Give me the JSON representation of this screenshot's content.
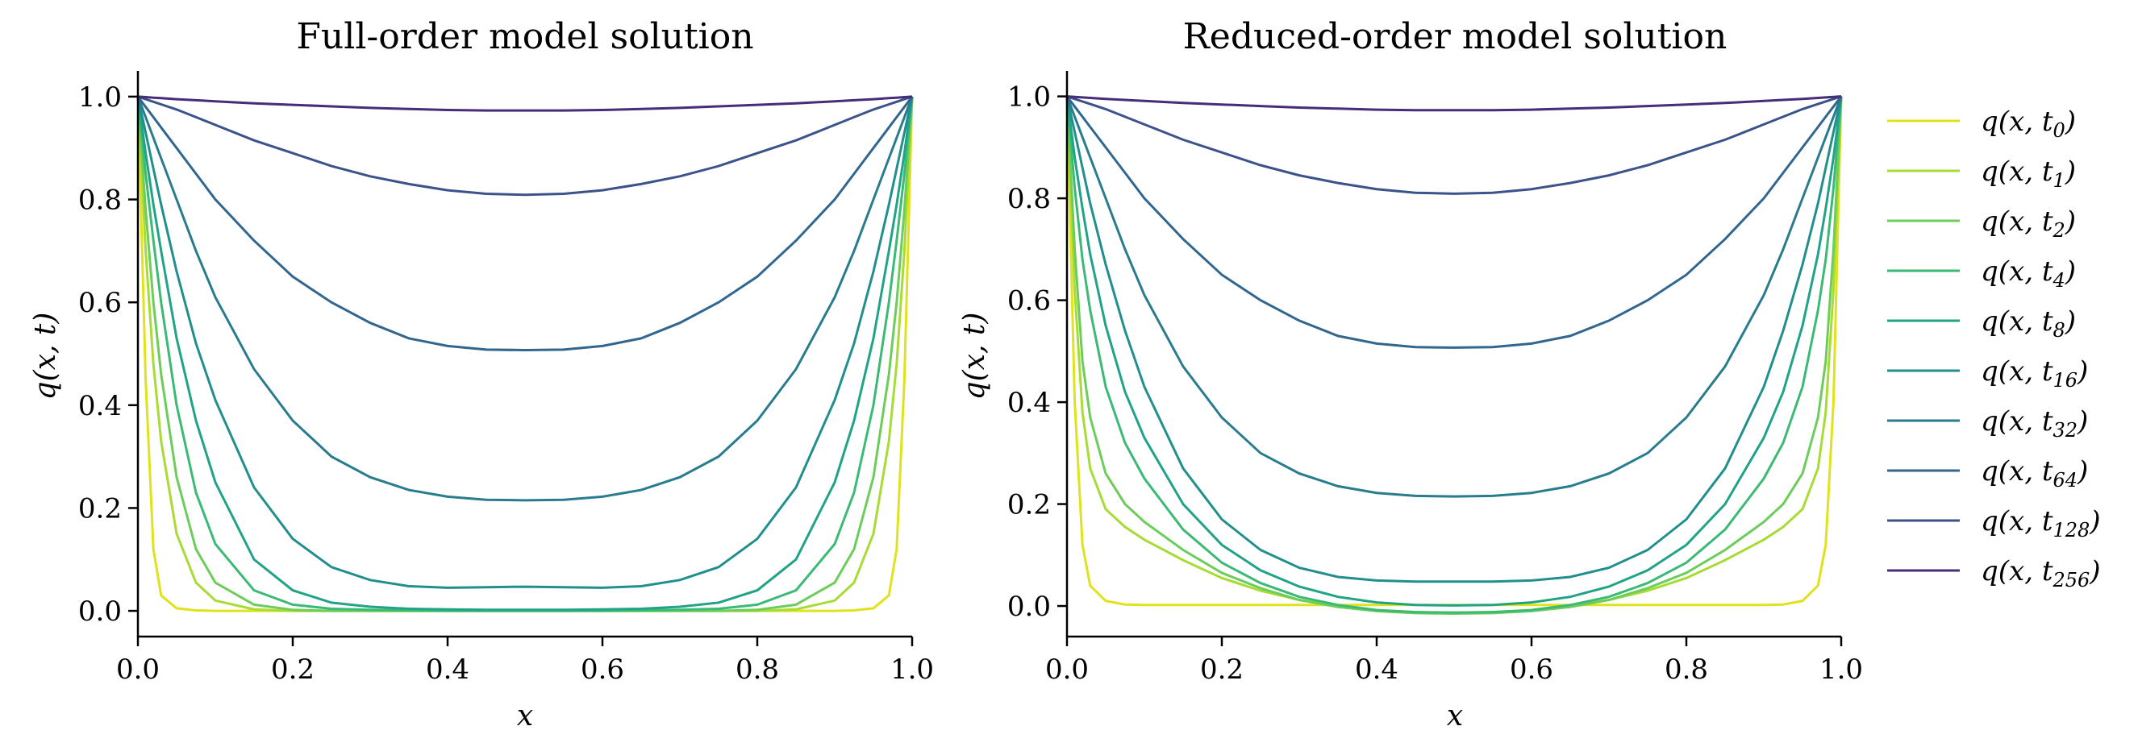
{
  "chart_data": [
    {
      "type": "line",
      "title": "Full-order model solution",
      "xlabel": "x",
      "ylabel": "q(x, t)",
      "xlim": [
        0.0,
        1.0
      ],
      "ylim": [
        -0.05,
        1.05
      ],
      "xticks": [
        "0.0",
        "0.2",
        "0.4",
        "0.6",
        "0.8",
        "1.0"
      ],
      "yticks": [
        "0.0",
        "0.2",
        "0.4",
        "0.6",
        "0.8",
        "1.0"
      ],
      "grid": false,
      "x": [
        0,
        0.01,
        0.02,
        0.03,
        0.05,
        0.075,
        0.1,
        0.15,
        0.2,
        0.25,
        0.3,
        0.35,
        0.4,
        0.45,
        0.5,
        0.55,
        0.6,
        0.65,
        0.7,
        0.75,
        0.8,
        0.85,
        0.9,
        0.925,
        0.95,
        0.97,
        0.98,
        0.99,
        1.0
      ],
      "series": [
        {
          "name": "t0",
          "values": [
            1.0,
            0.45,
            0.12,
            0.03,
            0.005,
            0.001,
            0.0,
            0.0,
            0.0,
            0.0,
            0.0,
            0.0,
            0.0,
            0.0,
            0.0,
            0.0,
            0.0,
            0.0,
            0.0,
            0.0,
            0.0,
            0.0,
            0.0,
            0.001,
            0.005,
            0.03,
            0.12,
            0.45,
            1.0
          ]
        },
        {
          "name": "t1",
          "values": [
            1.0,
            0.7,
            0.48,
            0.33,
            0.15,
            0.055,
            0.02,
            0.003,
            0.0,
            0.0,
            0.0,
            0.0,
            0.0,
            0.0,
            0.0,
            0.0,
            0.0,
            0.0,
            0.0,
            0.0,
            0.0,
            0.003,
            0.02,
            0.055,
            0.15,
            0.33,
            0.48,
            0.7,
            1.0
          ]
        },
        {
          "name": "t2",
          "values": [
            1.0,
            0.78,
            0.6,
            0.46,
            0.26,
            0.12,
            0.055,
            0.012,
            0.002,
            0.0,
            0.0,
            0.0,
            0.0,
            0.0,
            0.0,
            0.0,
            0.0,
            0.0,
            0.0,
            0.0,
            0.002,
            0.012,
            0.055,
            0.12,
            0.26,
            0.46,
            0.6,
            0.78,
            1.0
          ]
        },
        {
          "name": "t4",
          "values": [
            1.0,
            0.85,
            0.72,
            0.6,
            0.4,
            0.23,
            0.13,
            0.04,
            0.012,
            0.004,
            0.002,
            0.001,
            0.0,
            0.0,
            0.0,
            0.0,
            0.0,
            0.001,
            0.002,
            0.004,
            0.012,
            0.04,
            0.13,
            0.23,
            0.4,
            0.6,
            0.72,
            0.85,
            1.0
          ]
        },
        {
          "name": "t8",
          "values": [
            1.0,
            0.89,
            0.79,
            0.7,
            0.53,
            0.37,
            0.25,
            0.1,
            0.04,
            0.016,
            0.008,
            0.004,
            0.003,
            0.002,
            0.002,
            0.002,
            0.003,
            0.004,
            0.008,
            0.016,
            0.04,
            0.1,
            0.25,
            0.37,
            0.53,
            0.7,
            0.79,
            0.89,
            1.0
          ]
        },
        {
          "name": "t16",
          "values": [
            1.0,
            0.93,
            0.86,
            0.79,
            0.66,
            0.52,
            0.41,
            0.24,
            0.14,
            0.085,
            0.06,
            0.048,
            0.045,
            0.046,
            0.047,
            0.046,
            0.045,
            0.048,
            0.06,
            0.085,
            0.14,
            0.24,
            0.41,
            0.52,
            0.66,
            0.79,
            0.86,
            0.93,
            1.0
          ]
        },
        {
          "name": "t32",
          "values": [
            1.0,
            0.96,
            0.92,
            0.88,
            0.8,
            0.7,
            0.61,
            0.47,
            0.37,
            0.3,
            0.26,
            0.235,
            0.222,
            0.216,
            0.215,
            0.216,
            0.222,
            0.235,
            0.26,
            0.3,
            0.37,
            0.47,
            0.61,
            0.7,
            0.8,
            0.88,
            0.92,
            0.96,
            1.0
          ]
        },
        {
          "name": "t64",
          "values": [
            1.0,
            0.98,
            0.96,
            0.94,
            0.9,
            0.85,
            0.8,
            0.72,
            0.65,
            0.6,
            0.56,
            0.53,
            0.515,
            0.508,
            0.507,
            0.508,
            0.515,
            0.53,
            0.56,
            0.6,
            0.65,
            0.72,
            0.8,
            0.85,
            0.9,
            0.94,
            0.96,
            0.98,
            1.0
          ]
        },
        {
          "name": "t128",
          "values": [
            1.0,
            0.995,
            0.99,
            0.985,
            0.975,
            0.96,
            0.945,
            0.915,
            0.89,
            0.865,
            0.845,
            0.83,
            0.818,
            0.811,
            0.809,
            0.811,
            0.818,
            0.83,
            0.845,
            0.865,
            0.89,
            0.915,
            0.945,
            0.96,
            0.975,
            0.985,
            0.99,
            0.995,
            1.0
          ]
        },
        {
          "name": "t256",
          "values": [
            1.0,
            0.999,
            0.998,
            0.997,
            0.995,
            0.993,
            0.991,
            0.987,
            0.984,
            0.981,
            0.978,
            0.976,
            0.974,
            0.973,
            0.973,
            0.973,
            0.974,
            0.976,
            0.978,
            0.981,
            0.984,
            0.987,
            0.991,
            0.993,
            0.995,
            0.997,
            0.998,
            0.999,
            1.0
          ]
        }
      ]
    },
    {
      "type": "line",
      "title": "Reduced-order model solution",
      "xlabel": "x",
      "ylabel": "q(x, t)",
      "xlim": [
        0.0,
        1.0
      ],
      "ylim": [
        -0.06,
        1.05
      ],
      "xticks": [
        "0.0",
        "0.2",
        "0.4",
        "0.6",
        "0.8",
        "1.0"
      ],
      "yticks": [
        "0.0",
        "0.2",
        "0.4",
        "0.6",
        "0.8",
        "1.0"
      ],
      "grid": false,
      "x": [
        0,
        0.01,
        0.02,
        0.03,
        0.05,
        0.075,
        0.1,
        0.15,
        0.2,
        0.25,
        0.3,
        0.35,
        0.4,
        0.45,
        0.5,
        0.55,
        0.6,
        0.65,
        0.7,
        0.75,
        0.8,
        0.85,
        0.9,
        0.925,
        0.95,
        0.97,
        0.98,
        0.99,
        1.0
      ],
      "series": [
        {
          "name": "t0",
          "values": [
            1.0,
            0.4,
            0.12,
            0.04,
            0.01,
            0.003,
            0.002,
            0.002,
            0.002,
            0.002,
            0.002,
            0.002,
            0.002,
            0.002,
            0.002,
            0.002,
            0.002,
            0.002,
            0.002,
            0.002,
            0.002,
            0.002,
            0.002,
            0.003,
            0.01,
            0.04,
            0.12,
            0.4,
            1.0
          ]
        },
        {
          "name": "t1",
          "values": [
            1.0,
            0.62,
            0.38,
            0.27,
            0.19,
            0.155,
            0.13,
            0.09,
            0.055,
            0.03,
            0.012,
            0.0,
            -0.008,
            -0.012,
            -0.013,
            -0.012,
            -0.008,
            0.0,
            0.012,
            0.03,
            0.055,
            0.09,
            0.13,
            0.155,
            0.19,
            0.27,
            0.38,
            0.62,
            1.0
          ]
        },
        {
          "name": "t2",
          "values": [
            1.0,
            0.7,
            0.48,
            0.37,
            0.26,
            0.2,
            0.165,
            0.11,
            0.065,
            0.035,
            0.012,
            -0.002,
            -0.01,
            -0.014,
            -0.015,
            -0.014,
            -0.01,
            -0.002,
            0.012,
            0.035,
            0.065,
            0.11,
            0.165,
            0.2,
            0.26,
            0.37,
            0.48,
            0.7,
            1.0
          ]
        },
        {
          "name": "t4",
          "values": [
            1.0,
            0.82,
            0.68,
            0.58,
            0.43,
            0.32,
            0.25,
            0.15,
            0.085,
            0.045,
            0.018,
            0.002,
            -0.008,
            -0.012,
            -0.013,
            -0.012,
            -0.008,
            0.002,
            0.018,
            0.045,
            0.085,
            0.15,
            0.25,
            0.32,
            0.43,
            0.58,
            0.68,
            0.82,
            1.0
          ]
        },
        {
          "name": "t8",
          "values": [
            1.0,
            0.88,
            0.78,
            0.69,
            0.55,
            0.42,
            0.33,
            0.2,
            0.12,
            0.07,
            0.038,
            0.018,
            0.007,
            0.002,
            0.001,
            0.002,
            0.007,
            0.018,
            0.038,
            0.07,
            0.12,
            0.2,
            0.33,
            0.42,
            0.55,
            0.69,
            0.78,
            0.88,
            1.0
          ]
        },
        {
          "name": "t16",
          "values": [
            1.0,
            0.93,
            0.86,
            0.79,
            0.67,
            0.54,
            0.43,
            0.27,
            0.17,
            0.11,
            0.075,
            0.057,
            0.05,
            0.048,
            0.048,
            0.048,
            0.05,
            0.057,
            0.075,
            0.11,
            0.17,
            0.27,
            0.43,
            0.54,
            0.67,
            0.79,
            0.86,
            0.93,
            1.0
          ]
        },
        {
          "name": "t32",
          "values": [
            1.0,
            0.96,
            0.92,
            0.88,
            0.8,
            0.7,
            0.61,
            0.47,
            0.37,
            0.3,
            0.26,
            0.235,
            0.222,
            0.216,
            0.215,
            0.216,
            0.222,
            0.235,
            0.26,
            0.3,
            0.37,
            0.47,
            0.61,
            0.7,
            0.8,
            0.88,
            0.92,
            0.96,
            1.0
          ]
        },
        {
          "name": "t64",
          "values": [
            1.0,
            0.98,
            0.96,
            0.94,
            0.9,
            0.85,
            0.8,
            0.72,
            0.65,
            0.6,
            0.56,
            0.53,
            0.515,
            0.508,
            0.507,
            0.508,
            0.515,
            0.53,
            0.56,
            0.6,
            0.65,
            0.72,
            0.8,
            0.85,
            0.9,
            0.94,
            0.96,
            0.98,
            1.0
          ]
        },
        {
          "name": "t128",
          "values": [
            1.0,
            0.995,
            0.99,
            0.985,
            0.975,
            0.96,
            0.945,
            0.915,
            0.89,
            0.865,
            0.845,
            0.83,
            0.818,
            0.811,
            0.809,
            0.811,
            0.818,
            0.83,
            0.845,
            0.865,
            0.89,
            0.915,
            0.945,
            0.96,
            0.975,
            0.985,
            0.99,
            0.995,
            1.0
          ]
        },
        {
          "name": "t256",
          "values": [
            1.0,
            0.999,
            0.998,
            0.997,
            0.995,
            0.993,
            0.991,
            0.987,
            0.984,
            0.981,
            0.978,
            0.976,
            0.974,
            0.973,
            0.973,
            0.973,
            0.974,
            0.976,
            0.978,
            0.981,
            0.984,
            0.987,
            0.991,
            0.993,
            0.995,
            0.997,
            0.998,
            0.999,
            1.0
          ]
        }
      ]
    }
  ],
  "legend": {
    "placement": "right",
    "entries": [
      {
        "base": "q(x, t",
        "sub": "0",
        "close": ")",
        "color": "#e0e31a"
      },
      {
        "base": "q(x, t",
        "sub": "1",
        "close": ")",
        "color": "#a8db34"
      },
      {
        "base": "q(x, t",
        "sub": "2",
        "close": ")",
        "color": "#6ccd5a"
      },
      {
        "base": "q(x, t",
        "sub": "4",
        "close": ")",
        "color": "#3bba75"
      },
      {
        "base": "q(x, t",
        "sub": "8",
        "close": ")",
        "color": "#20a386"
      },
      {
        "base": "q(x, t",
        "sub": "16",
        "close": ")",
        "color": "#218f8d"
      },
      {
        "base": "q(x, t",
        "sub": "32",
        "close": ")",
        "color": "#287c8e"
      },
      {
        "base": "q(x, t",
        "sub": "64",
        "close": ")",
        "color": "#31668e"
      },
      {
        "base": "q(x, t",
        "sub": "128",
        "close": ")",
        "color": "#3b528b"
      },
      {
        "base": "q(x, t",
        "sub": "256",
        "close": ")",
        "color": "#472c7a"
      }
    ]
  }
}
